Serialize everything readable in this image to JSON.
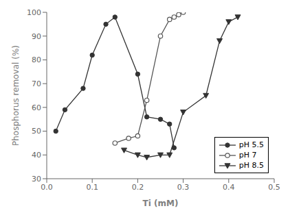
{
  "chart_data": {
    "type": "line",
    "xlabel": "Ti (mM)",
    "ylabel": "Phosphorus removal (%)",
    "xlim": [
      0.0,
      0.5
    ],
    "ylim": [
      30,
      100
    ],
    "xticks": [
      {
        "value": 0.0,
        "label": "0.0"
      },
      0.1,
      0.2,
      0.3,
      0.4,
      0.5
    ],
    "yticks": [
      30,
      40,
      50,
      60,
      70,
      80,
      90,
      100
    ],
    "grid": false,
    "legend": "lower right",
    "series": [
      {
        "name": "pH 5.5",
        "color": "#333333",
        "marker": "circle",
        "x": [
          0.02,
          0.04,
          0.08,
          0.1,
          0.13,
          0.15,
          0.2,
          0.22,
          0.25,
          0.27,
          0.28
        ],
        "values": [
          50,
          59,
          68,
          82,
          95,
          98,
          74,
          56,
          55,
          53,
          43
        ]
      },
      {
        "name": "pH 7",
        "color": "#555555",
        "marker": "circle_open",
        "x": [
          0.15,
          0.18,
          0.2,
          0.22,
          0.25,
          0.27,
          0.28,
          0.29,
          0.3
        ],
        "values": [
          45,
          47,
          48,
          63,
          90,
          97,
          98,
          99,
          100
        ]
      },
      {
        "name": "pH 8.5",
        "color": "#333333",
        "marker": "triangle_down",
        "x": [
          0.17,
          0.2,
          0.22,
          0.25,
          0.27,
          0.3,
          0.35,
          0.38,
          0.4,
          0.42
        ],
        "values": [
          42,
          40,
          39,
          40,
          40,
          58,
          65,
          88,
          96,
          98
        ]
      }
    ]
  }
}
